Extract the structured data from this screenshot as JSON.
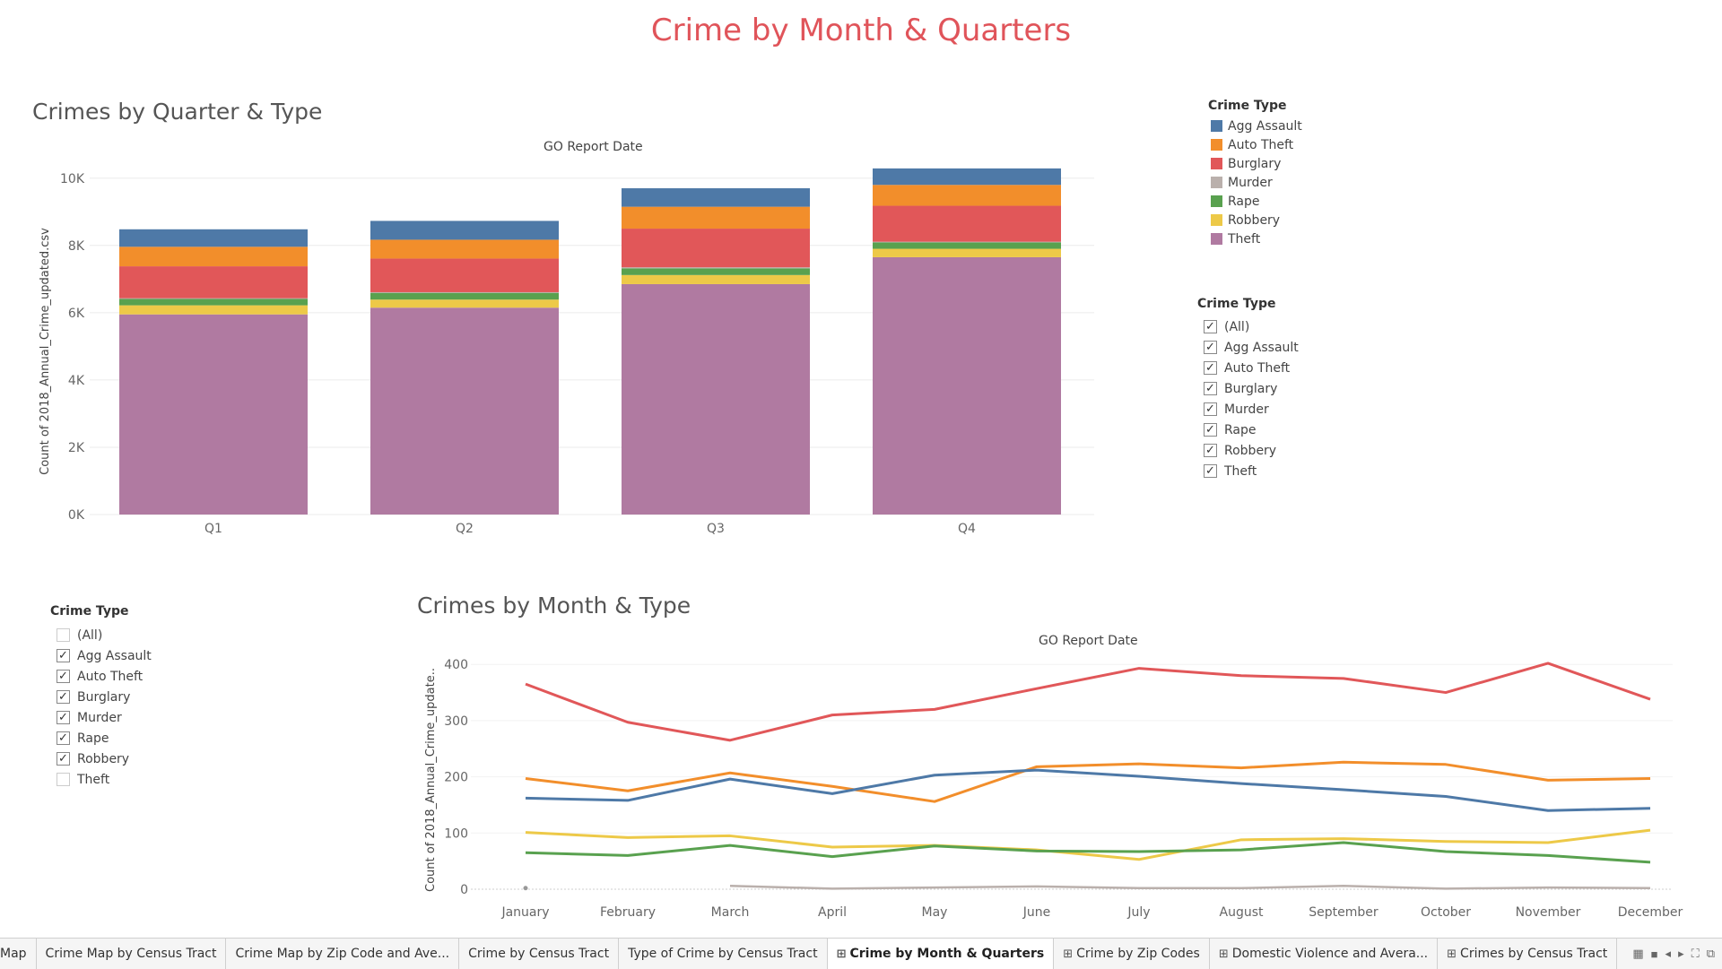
{
  "dashboard": {
    "title": "Crime by Month & Quarters"
  },
  "colors": {
    "Agg Assault": "#4e79a7",
    "Auto Theft": "#f28e2b",
    "Burglary": "#e15759",
    "Murder": "#bab0ac",
    "Rape": "#59a14f",
    "Robbery": "#edc948",
    "Theft": "#b07aa1"
  },
  "quarter_chart": {
    "title": "Crimes by Quarter & Type",
    "header": "GO Report Date",
    "ylabel": "Count of 2018_Annual_Crime_updated.csv",
    "ytick_labels": [
      "0K",
      "2K",
      "4K",
      "6K",
      "8K",
      "10K"
    ]
  },
  "month_chart": {
    "title": "Crimes by Month & Type",
    "header": "GO Report Date",
    "ylabel": "Count of 2018_Annual_Crime_update..",
    "ytick_labels": [
      "0",
      "100",
      "200",
      "300",
      "400"
    ]
  },
  "legend": {
    "title": "Crime Type",
    "items": [
      "Agg Assault",
      "Auto Theft",
      "Burglary",
      "Murder",
      "Rape",
      "Robbery",
      "Theft"
    ]
  },
  "filter_right": {
    "title": "Crime Type",
    "items": [
      {
        "label": "(All)",
        "checked": true
      },
      {
        "label": "Agg Assault",
        "checked": true
      },
      {
        "label": "Auto Theft",
        "checked": true
      },
      {
        "label": "Burglary",
        "checked": true
      },
      {
        "label": "Murder",
        "checked": true
      },
      {
        "label": "Rape",
        "checked": true
      },
      {
        "label": "Robbery",
        "checked": true
      },
      {
        "label": "Theft",
        "checked": true
      }
    ]
  },
  "filter_left": {
    "title": "Crime Type",
    "items": [
      {
        "label": "(All)",
        "checked": false
      },
      {
        "label": "Agg Assault",
        "checked": true
      },
      {
        "label": "Auto Theft",
        "checked": true
      },
      {
        "label": "Burglary",
        "checked": true
      },
      {
        "label": "Murder",
        "checked": true
      },
      {
        "label": "Rape",
        "checked": true
      },
      {
        "label": "Robbery",
        "checked": true
      },
      {
        "label": "Theft",
        "checked": false
      }
    ]
  },
  "tabs": [
    {
      "label": "Map",
      "icon": false,
      "active": false
    },
    {
      "label": "Crime Map by Census Tract",
      "icon": false,
      "active": false
    },
    {
      "label": "Crime Map by Zip Code and Ave...",
      "icon": false,
      "active": false
    },
    {
      "label": "Crime by Census Tract",
      "icon": false,
      "active": false
    },
    {
      "label": "Type of Crime by Census Tract",
      "icon": false,
      "active": false
    },
    {
      "label": "Crime by Month & Quarters",
      "icon": true,
      "active": true
    },
    {
      "label": "Crime by Zip Codes",
      "icon": true,
      "active": false
    },
    {
      "label": "Domestic Violence and Avera...",
      "icon": true,
      "active": false
    },
    {
      "label": "Crimes by Census Tract",
      "icon": true,
      "active": false
    }
  ],
  "chart_data": [
    {
      "type": "bar",
      "stacked": true,
      "title": "Crimes by Quarter & Type",
      "xlabel": "GO Report Date",
      "ylabel": "Count of 2018_Annual_Crime_updated.csv",
      "ylim": [
        0,
        10500
      ],
      "categories": [
        "Q1",
        "Q2",
        "Q3",
        "Q4"
      ],
      "series": [
        {
          "name": "Theft",
          "values": [
            5950,
            6150,
            6850,
            7650
          ]
        },
        {
          "name": "Robbery",
          "values": [
            270,
            240,
            270,
            250
          ]
        },
        {
          "name": "Rape",
          "values": [
            190,
            200,
            200,
            190
          ]
        },
        {
          "name": "Murder",
          "values": [
            20,
            20,
            30,
            20
          ]
        },
        {
          "name": "Burglary",
          "values": [
            950,
            1000,
            1150,
            1070
          ]
        },
        {
          "name": "Auto Theft",
          "values": [
            580,
            560,
            650,
            620
          ]
        },
        {
          "name": "Agg Assault",
          "values": [
            520,
            560,
            550,
            490
          ]
        }
      ]
    },
    {
      "type": "line",
      "title": "Crimes by Month & Type",
      "xlabel": "GO Report Date",
      "ylabel": "Count of 2018_Annual_Crime_update..",
      "ylim": [
        0,
        420
      ],
      "categories": [
        "January",
        "February",
        "March",
        "April",
        "May",
        "June",
        "July",
        "August",
        "September",
        "October",
        "November",
        "December"
      ],
      "series": [
        {
          "name": "Burglary",
          "values": [
            365,
            297,
            265,
            310,
            320,
            357,
            393,
            380,
            375,
            350,
            402,
            338
          ]
        },
        {
          "name": "Auto Theft",
          "values": [
            197,
            175,
            207,
            183,
            156,
            218,
            223,
            216,
            226,
            222,
            194,
            197
          ]
        },
        {
          "name": "Agg Assault",
          "values": [
            162,
            158,
            196,
            170,
            203,
            212,
            201,
            188,
            177,
            165,
            140,
            144
          ]
        },
        {
          "name": "Robbery",
          "values": [
            101,
            92,
            95,
            75,
            78,
            70,
            53,
            88,
            90,
            85,
            83,
            105
          ]
        },
        {
          "name": "Rape",
          "values": [
            65,
            60,
            78,
            58,
            77,
            68,
            67,
            70,
            83,
            67,
            60,
            48
          ]
        },
        {
          "name": "Murder",
          "values": [
            2,
            null,
            6,
            1,
            3,
            5,
            2,
            2,
            6,
            1,
            3,
            2
          ]
        }
      ]
    }
  ]
}
